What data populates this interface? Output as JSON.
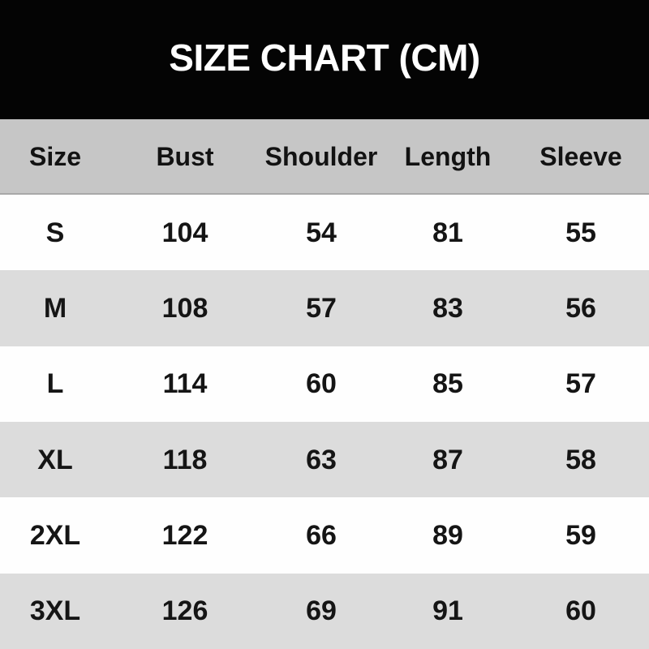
{
  "chart_data": {
    "type": "table",
    "title": "SIZE CHART (CM)",
    "units": "cm",
    "columns": [
      "Size",
      "Bust",
      "Shoulder",
      "Length",
      "Sleeve"
    ],
    "rows": [
      [
        "S",
        "104",
        "54",
        "81",
        "55"
      ],
      [
        "M",
        "108",
        "57",
        "83",
        "56"
      ],
      [
        "L",
        "114",
        "60",
        "85",
        "57"
      ],
      [
        "XL",
        "118",
        "63",
        "87",
        "58"
      ],
      [
        "2XL",
        "122",
        "66",
        "89",
        "59"
      ],
      [
        "3XL",
        "126",
        "69",
        "91",
        "60"
      ]
    ]
  },
  "colors": {
    "banner_bg": "#040404",
    "title_text": "#ffffff",
    "header_bg": "#c6c6c6",
    "header_border": "#a8a8a8",
    "row_white": "#fefefe",
    "row_alt": "#dcdcdc",
    "body_text": "#151515"
  }
}
